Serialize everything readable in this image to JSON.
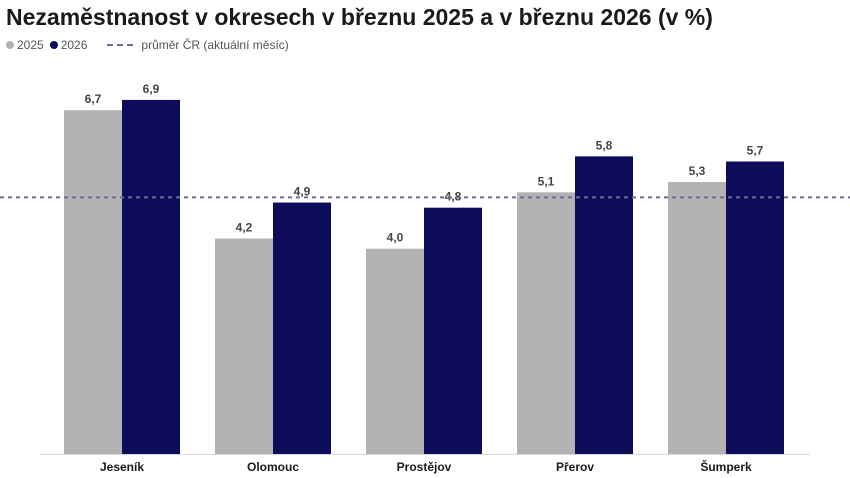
{
  "chart_data": {
    "type": "bar",
    "title": "Nezaměstnanost v okresech v březnu 2025 a v březnu 2026 (v %)",
    "categories": [
      "Jeseník",
      "Olomouc",
      "Prostějov",
      "Přerov",
      "Šumperk"
    ],
    "series": [
      {
        "name": "2025",
        "color": "#b3b3b3",
        "values": [
          6.7,
          4.2,
          4.0,
          5.1,
          5.3
        ],
        "labels": [
          "6,7",
          "4,2",
          "4,0",
          "5,1",
          "5,3"
        ]
      },
      {
        "name": "2026",
        "color": "#0c0c5a",
        "values": [
          6.9,
          4.9,
          4.8,
          5.8,
          5.7
        ],
        "labels": [
          "6,9",
          "4,9",
          "4,8",
          "5,8",
          "5,7"
        ]
      }
    ],
    "reference_line": {
      "label": "průměr ČR (aktuální měsíc)",
      "value": 5.0,
      "style": "dashed",
      "color": "#6b6b8f"
    },
    "ylim": [
      0,
      7.6
    ],
    "grid": false,
    "legend_position": "top-left"
  }
}
